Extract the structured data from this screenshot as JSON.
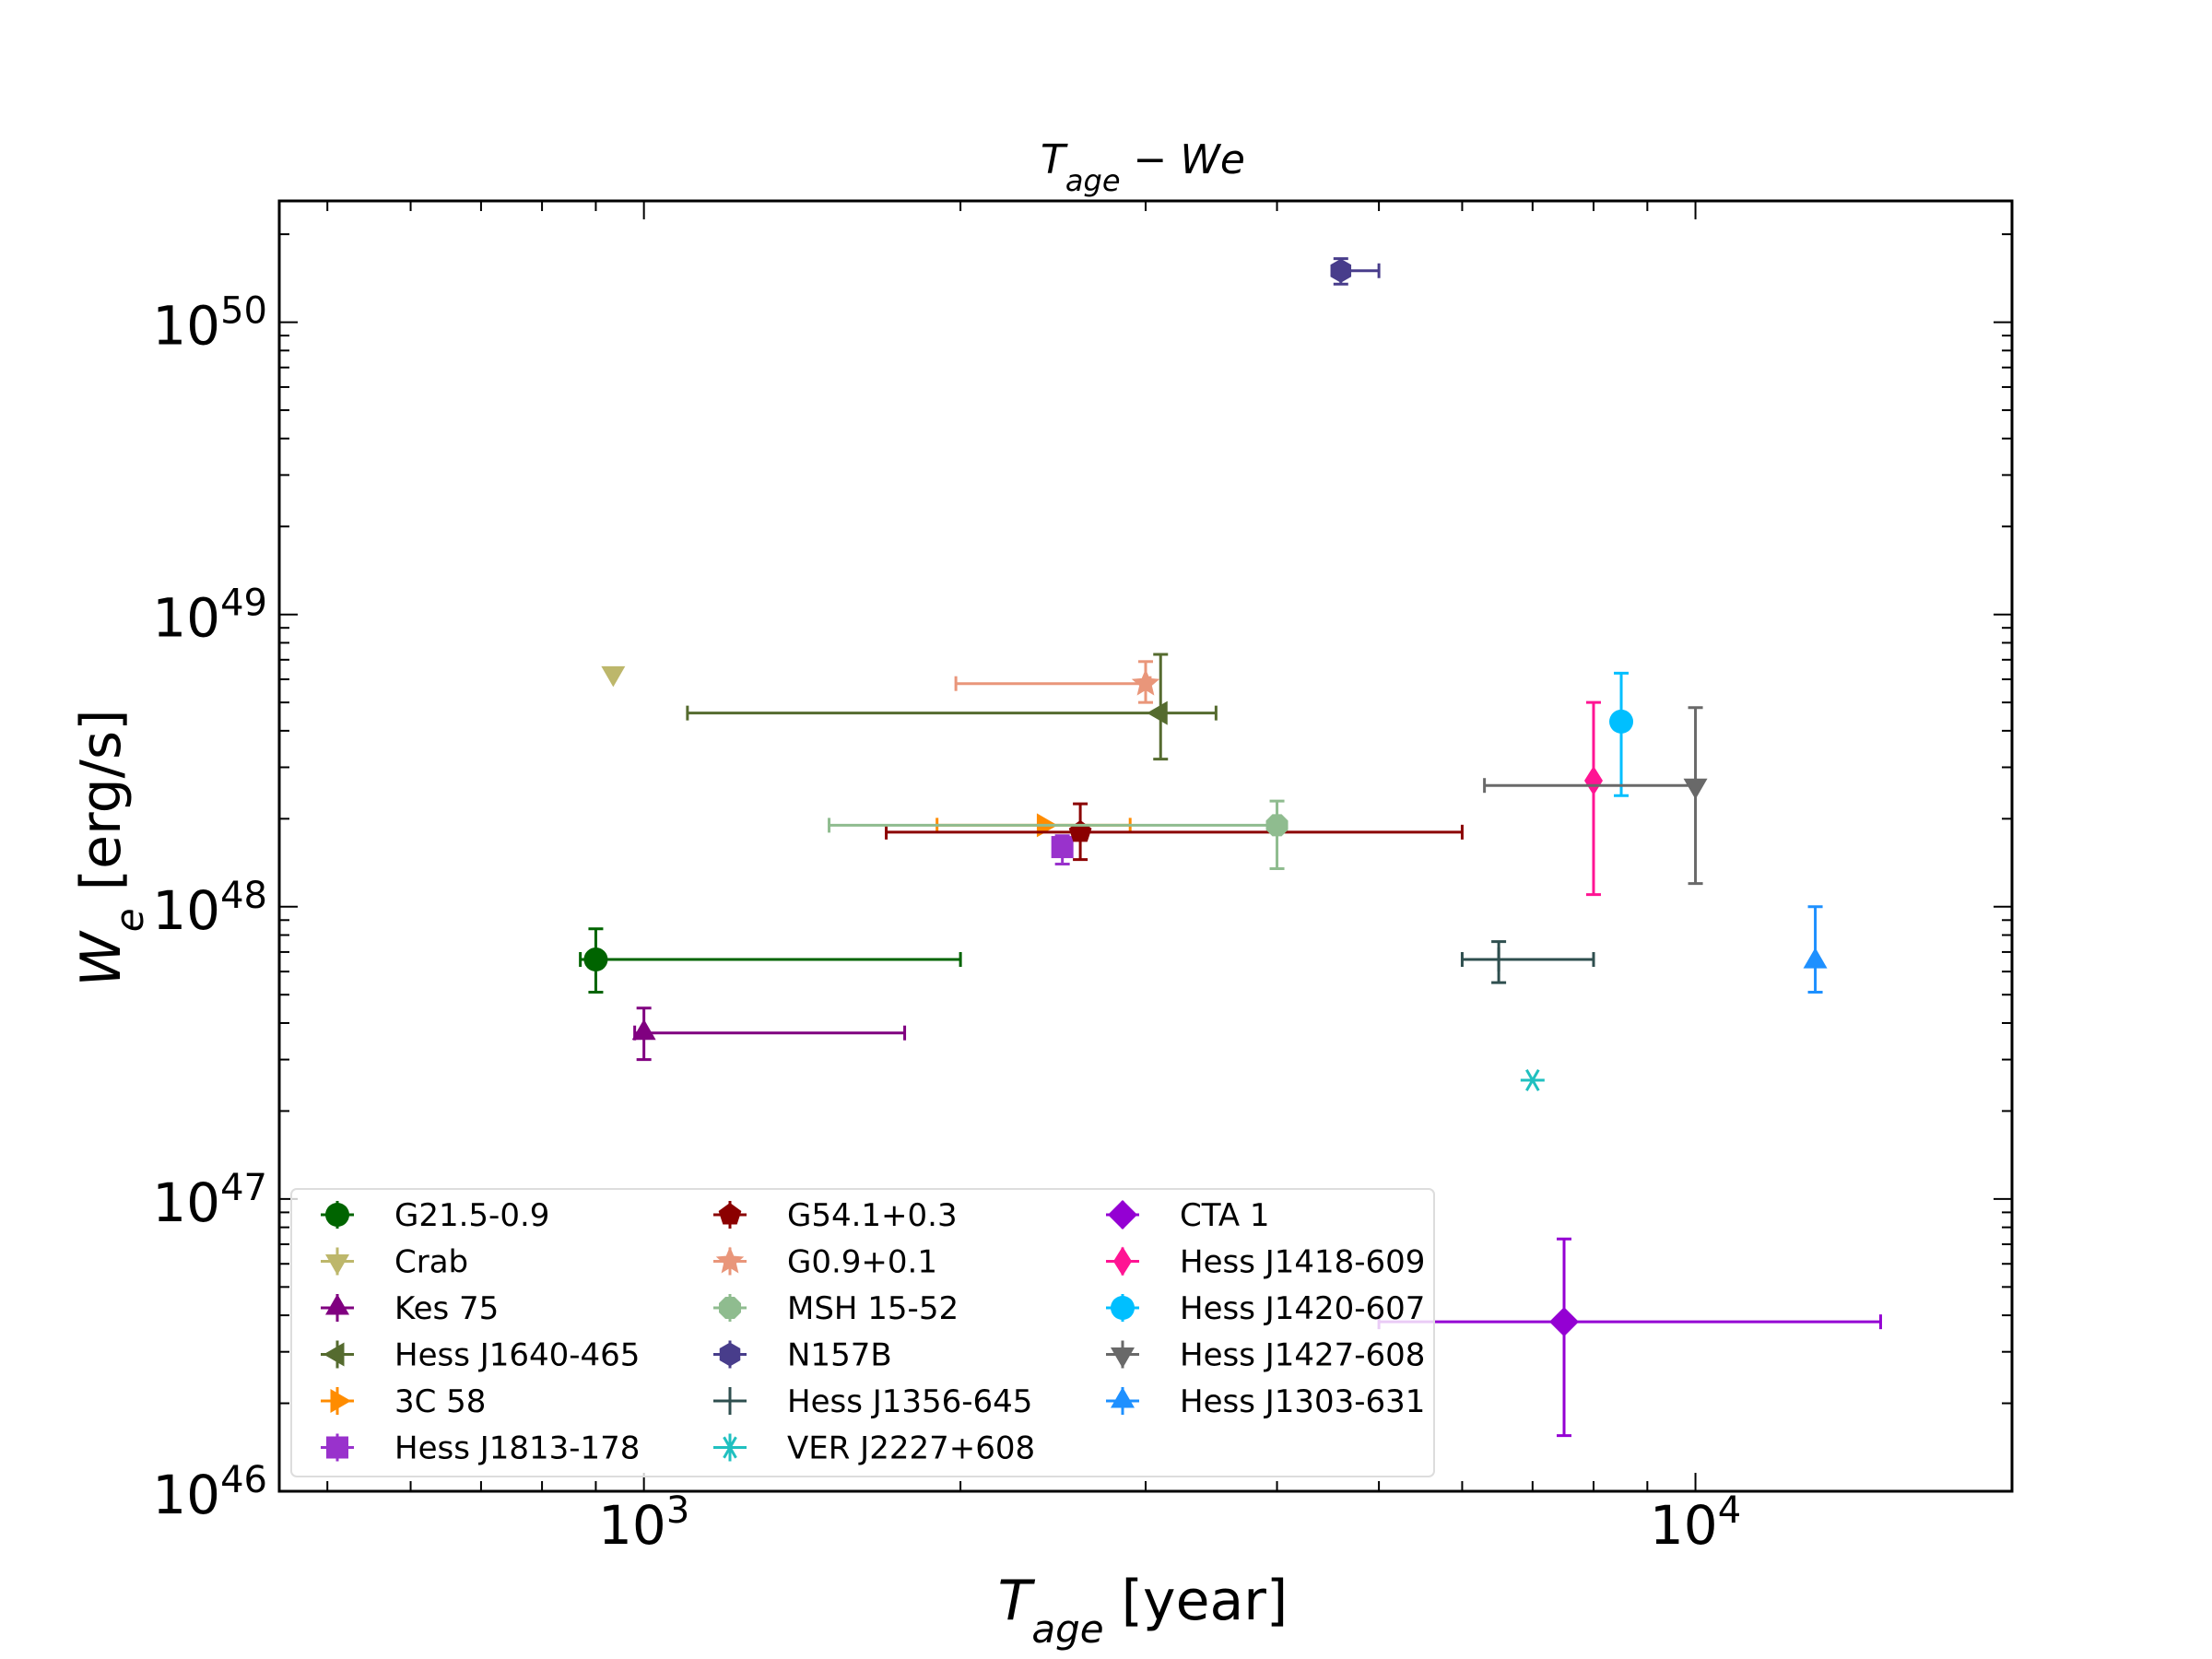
{
  "chart_data": {
    "type": "scatter",
    "title_main": "T",
    "title_sub": "age",
    "title_rest": " − We",
    "xlabel_main": "T",
    "xlabel_sub": "age",
    "xlabel_rest": " [year]",
    "ylabel_main": "W",
    "ylabel_sub": "e",
    "ylabel_rest": " [erg/s]",
    "xscale": "log",
    "yscale": "log",
    "xlim": [
      450,
      20000
    ],
    "ylim": [
      1e+46,
      2.6e+50
    ],
    "x_ticks": [
      {
        "base": "10",
        "exp": "3",
        "value": 1000
      },
      {
        "base": "10",
        "exp": "4",
        "value": 10000
      }
    ],
    "y_ticks": [
      {
        "base": "10",
        "exp": "46",
        "value": 1e+46
      },
      {
        "base": "10",
        "exp": "47",
        "value": 1e+47
      },
      {
        "base": "10",
        "exp": "48",
        "value": 1e+48
      },
      {
        "base": "10",
        "exp": "49",
        "value": 1e+49
      },
      {
        "base": "10",
        "exp": "50",
        "value": 1e+50
      }
    ],
    "legend_position": "lower-left",
    "series": [
      {
        "name": "G21.5-0.9",
        "color": "#006400",
        "marker": "circle",
        "x": 900,
        "y": 6.6e+47,
        "xerr": [
          870,
          2000
        ],
        "yerr": [
          5.1e+47,
          8.4e+47
        ]
      },
      {
        "name": "Crab",
        "color": "#bdb76b",
        "marker": "triangle-down",
        "x": 935,
        "y": 6.3e+48,
        "xerr": null,
        "yerr": null
      },
      {
        "name": "Kes 75",
        "color": "#800080",
        "marker": "triangle-up",
        "x": 1000,
        "y": 3.7e+47,
        "xerr": [
          980,
          1770
        ],
        "yerr": [
          3e+47,
          4.5e+47
        ]
      },
      {
        "name": "Hess J1640-465",
        "color": "#556b2f",
        "marker": "triangle-left",
        "x": 3100,
        "y": 4.6e+48,
        "xerr": [
          1100,
          3500
        ],
        "yerr": [
          3.2e+48,
          7.3e+48
        ]
      },
      {
        "name": "3C 58",
        "color": "#ff8c00",
        "marker": "triangle-right",
        "x": 2400,
        "y": 1.9e+48,
        "xerr": [
          1900,
          2900
        ],
        "yerr": null
      },
      {
        "name": "Hess J1813-178",
        "color": "#9932cc",
        "marker": "square",
        "x": 2500,
        "y": 1.6e+48,
        "xerr": null,
        "yerr": [
          1.4e+48,
          1.75e+48
        ]
      },
      {
        "name": "G54.1+0.3",
        "color": "#8b0000",
        "marker": "pentagon",
        "x": 2600,
        "y": 1.8e+48,
        "xerr": [
          1700,
          6000
        ],
        "yerr": [
          1.45e+48,
          2.25e+48
        ]
      },
      {
        "name": "G0.9+0.1",
        "color": "#e9967a",
        "marker": "star",
        "x": 3000,
        "y": 5.8e+48,
        "xerr": [
          1980,
          3030
        ],
        "yerr": [
          5e+48,
          6.9e+48
        ]
      },
      {
        "name": "MSH 15-52",
        "color": "#8fbc8f",
        "marker": "octagon",
        "x": 4000,
        "y": 1.9e+48,
        "xerr": [
          1500,
          4000
        ],
        "yerr": [
          1.35e+48,
          2.3e+48
        ]
      },
      {
        "name": "N157B",
        "color": "#483d8b",
        "marker": "hexagon",
        "x": 4600,
        "y": 1.5e+50,
        "xerr": [
          4600,
          5000
        ],
        "yerr": [
          1.35e+50,
          1.65e+50
        ]
      },
      {
        "name": "Hess J1356-645",
        "color": "#2f4f4f",
        "marker": "plus",
        "x": 6500,
        "y": 6.6e+47,
        "xerr": [
          6000,
          8000
        ],
        "yerr": [
          5.5e+47,
          7.6e+47
        ]
      },
      {
        "name": "VER J2227+608",
        "color": "#20c0c0",
        "marker": "asterisk",
        "x": 7000,
        "y": 2.55e+47,
        "xerr": null,
        "yerr": null
      },
      {
        "name": "CTA 1",
        "color": "#9400d3",
        "marker": "diamond",
        "x": 7500,
        "y": 3.8e+46,
        "xerr": [
          5000,
          15000
        ],
        "yerr": [
          1.55e+46,
          7.3e+46
        ]
      },
      {
        "name": "Hess J1418-609",
        "color": "#ff1493",
        "marker": "thin-diamond",
        "x": 8000,
        "y": 2.7e+48,
        "xerr": null,
        "yerr": [
          1.1e+48,
          5e+48
        ]
      },
      {
        "name": "Hess J1420-607",
        "color": "#00bfff",
        "marker": "circle",
        "x": 8500,
        "y": 4.3e+48,
        "xerr": null,
        "yerr": [
          2.4e+48,
          6.3e+48
        ]
      },
      {
        "name": "Hess J1427-608",
        "color": "#696969",
        "marker": "triangle-down",
        "x": 10000,
        "y": 2.6e+48,
        "xerr": [
          6300,
          10000
        ],
        "yerr": [
          1.2e+48,
          4.8e+48
        ]
      },
      {
        "name": "Hess J1303-631",
        "color": "#1e90ff",
        "marker": "triangle-up",
        "x": 13000,
        "y": 6.5e+47,
        "xerr": null,
        "yerr": [
          5.1e+47,
          1e+48
        ]
      }
    ]
  }
}
